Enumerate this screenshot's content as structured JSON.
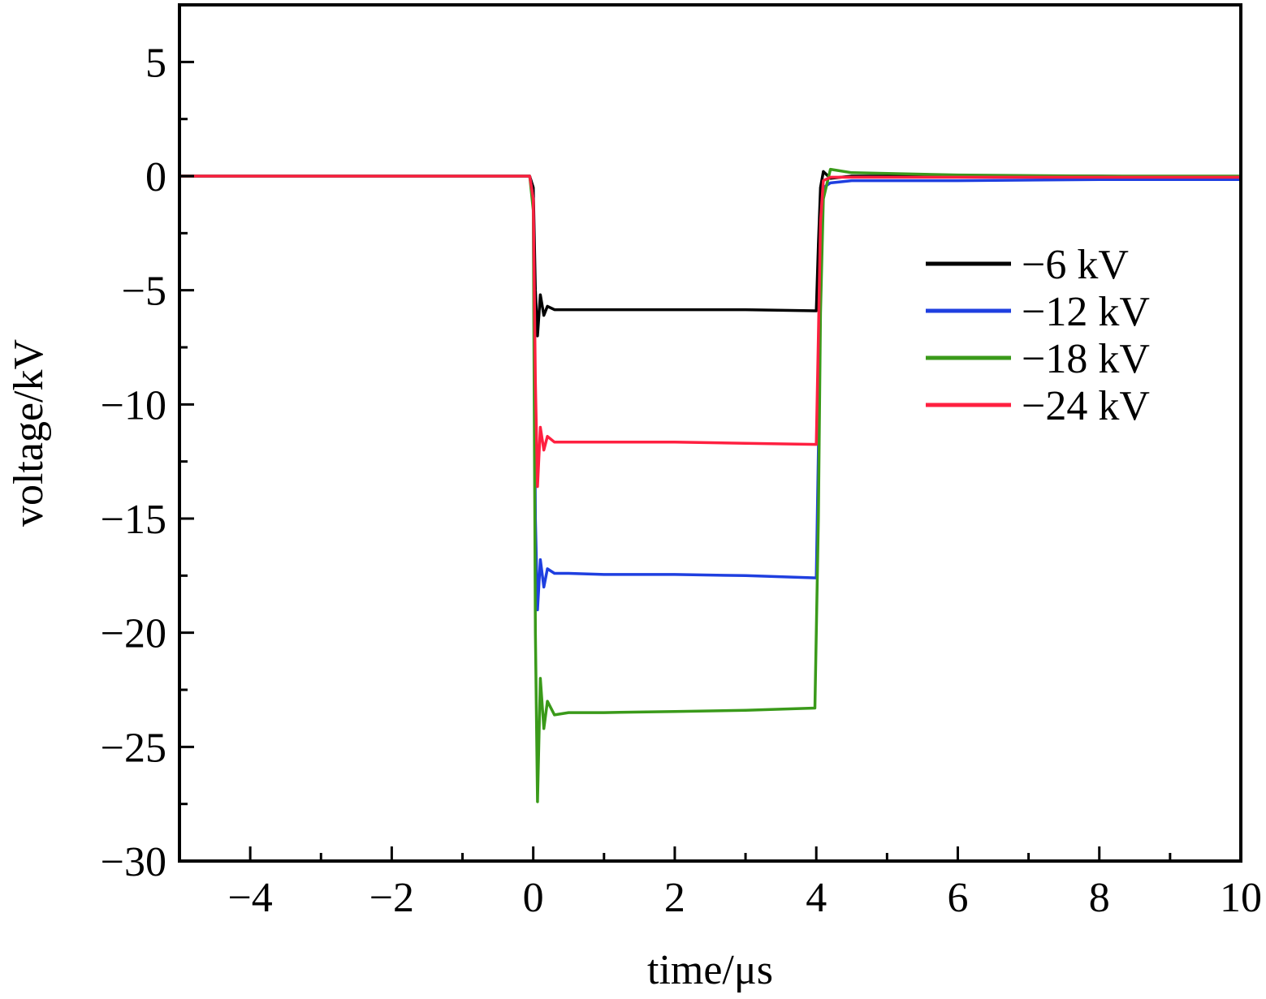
{
  "chart_data": {
    "type": "line",
    "title": "",
    "xlabel": "time/μs",
    "ylabel": "voltage/kV",
    "xlim": [
      -5,
      10
    ],
    "ylim": [
      -30,
      7.5
    ],
    "x_ticks": [
      -4,
      -2,
      0,
      2,
      4,
      6,
      8,
      10
    ],
    "x_tick_labels": [
      "−4",
      "−2",
      "0",
      "2",
      "4",
      "6",
      "8",
      "10"
    ],
    "y_ticks": [
      5,
      0,
      -5,
      -10,
      -15,
      -20,
      -25,
      -30
    ],
    "y_tick_labels": [
      "5",
      "0",
      "−5",
      "−10",
      "−15",
      "−20",
      "−25",
      "−30"
    ],
    "grid": false,
    "legend_position": "right",
    "series": [
      {
        "name": "−6 kV",
        "color": "#000000",
        "x": [
          -5,
          -0.05,
          0.0,
          0.03,
          0.06,
          0.1,
          0.15,
          0.2,
          0.3,
          0.5,
          1.0,
          2.0,
          3.0,
          4.0,
          4.03,
          4.06,
          4.1,
          4.2,
          4.5,
          6,
          8,
          10
        ],
        "y": [
          0,
          0,
          -0.5,
          -5.0,
          -7.0,
          -5.2,
          -6.1,
          -5.7,
          -5.85,
          -5.85,
          -5.85,
          -5.85,
          -5.85,
          -5.9,
          -3.0,
          -0.5,
          0.2,
          -0.1,
          0.0,
          0.0,
          0.0,
          -0.05
        ]
      },
      {
        "name": "−12 kV",
        "color": "#1f3fe0",
        "x": [
          -5,
          -0.05,
          0.0,
          0.03,
          0.06,
          0.1,
          0.15,
          0.2,
          0.3,
          0.5,
          1.0,
          2.0,
          3.0,
          4.0,
          4.03,
          4.06,
          4.1,
          4.2,
          4.5,
          6,
          8,
          10
        ],
        "y": [
          0,
          0,
          -1.0,
          -15.0,
          -19.0,
          -16.8,
          -18.0,
          -17.2,
          -17.4,
          -17.4,
          -17.45,
          -17.45,
          -17.5,
          -17.6,
          -12.0,
          -5.0,
          -0.5,
          -0.3,
          -0.2,
          -0.2,
          -0.15,
          -0.15
        ]
      },
      {
        "name": "−18 kV",
        "color": "#3a9a1a",
        "x": [
          -5,
          -0.05,
          0.0,
          0.03,
          0.06,
          0.1,
          0.15,
          0.2,
          0.3,
          0.5,
          1.0,
          2.0,
          3.0,
          3.98,
          4.03,
          4.06,
          4.1,
          4.2,
          4.5,
          6,
          8,
          10
        ],
        "y": [
          0,
          0,
          -1.5,
          -20.0,
          -27.4,
          -22.0,
          -24.2,
          -23.0,
          -23.6,
          -23.5,
          -23.5,
          -23.45,
          -23.4,
          -23.3,
          -15.0,
          -6.0,
          -1.0,
          0.3,
          0.15,
          0.05,
          0.0,
          0.0
        ]
      },
      {
        "name": "−24 kV",
        "color": "#ff2040",
        "x": [
          -5,
          -0.05,
          0.0,
          0.03,
          0.06,
          0.1,
          0.15,
          0.2,
          0.3,
          0.5,
          1.0,
          2.0,
          3.0,
          4.0,
          4.03,
          4.06,
          4.1,
          4.2,
          4.5,
          6,
          8,
          10
        ],
        "y": [
          0,
          0,
          -1.0,
          -9.0,
          -13.6,
          -11.0,
          -12.0,
          -11.4,
          -11.65,
          -11.65,
          -11.65,
          -11.65,
          -11.7,
          -11.75,
          -7.0,
          -2.0,
          -0.2,
          -0.05,
          -0.05,
          -0.05,
          -0.05,
          -0.05
        ]
      }
    ]
  }
}
